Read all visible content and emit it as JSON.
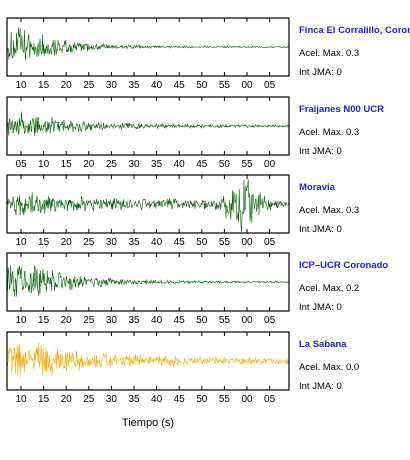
{
  "chart_data": {
    "type": "line",
    "xlabel": "Tiempo (s)",
    "amax_label": "Acel. Max.",
    "jma_label": "Int JMA:",
    "panels": [
      {
        "name": "Finca El Corralillo, Coronado",
        "acel_max": "0.3",
        "int_jma": "0",
        "color": "#006400",
        "tick_labels": [
          "10",
          "15",
          "20",
          "25",
          "30",
          "35",
          "40",
          "45",
          "50",
          "55",
          "00",
          "05"
        ],
        "envelope": {
          "onset_s": 0.0,
          "peak_s": 2.0,
          "peak_amplitude": 0.95,
          "decay_s": 9.0,
          "floor": 0.03,
          "bursts": []
        }
      },
      {
        "name": "Fraijanes N00 UCR",
        "acel_max": "0.3",
        "int_jma": "0",
        "color": "#006400",
        "tick_labels": [
          "05",
          "10",
          "15",
          "20",
          "25",
          "30",
          "35",
          "40",
          "45",
          "50",
          "55",
          "00"
        ],
        "envelope": {
          "onset_s": 0.0,
          "peak_s": 3.0,
          "peak_amplitude": 0.6,
          "decay_s": 12.0,
          "floor": 0.05,
          "bursts": []
        }
      },
      {
        "name": "Moravia",
        "acel_max": "0.3",
        "int_jma": "0",
        "color": "#006400",
        "tick_labels": [
          "10",
          "15",
          "20",
          "25",
          "30",
          "35",
          "40",
          "45",
          "50",
          "55",
          "00",
          "05"
        ],
        "envelope": {
          "onset_s": 0.0,
          "peak_s": 2.0,
          "peak_amplitude": 0.55,
          "decay_s": 10.0,
          "floor": 0.22,
          "bursts": [
            {
              "t_s": 52.0,
              "width_s": 3.5,
              "amplitude": 0.95
            }
          ]
        }
      },
      {
        "name": "ICP–UCR Coronado",
        "acel_max": "0.2",
        "int_jma": "0",
        "color": "#006400",
        "tick_labels": [
          "10",
          "15",
          "20",
          "25",
          "30",
          "35",
          "40",
          "45",
          "50",
          "55",
          "00",
          "05"
        ],
        "envelope": {
          "onset_s": 0.0,
          "peak_s": 3.0,
          "peak_amplitude": 0.95,
          "decay_s": 10.0,
          "floor": 0.04,
          "bursts": []
        }
      },
      {
        "name": "La Sabana",
        "acel_max": "0.0",
        "int_jma": "0",
        "color": "#ffaa00",
        "tick_labels": [
          "10",
          "15",
          "20",
          "25",
          "30",
          "35",
          "40",
          "45",
          "50",
          "55",
          "00",
          "05"
        ],
        "envelope": {
          "onset_s": 0.0,
          "peak_s": 3.0,
          "peak_amplitude": 0.9,
          "decay_s": 14.0,
          "floor": 0.12,
          "bursts": []
        }
      }
    ]
  }
}
